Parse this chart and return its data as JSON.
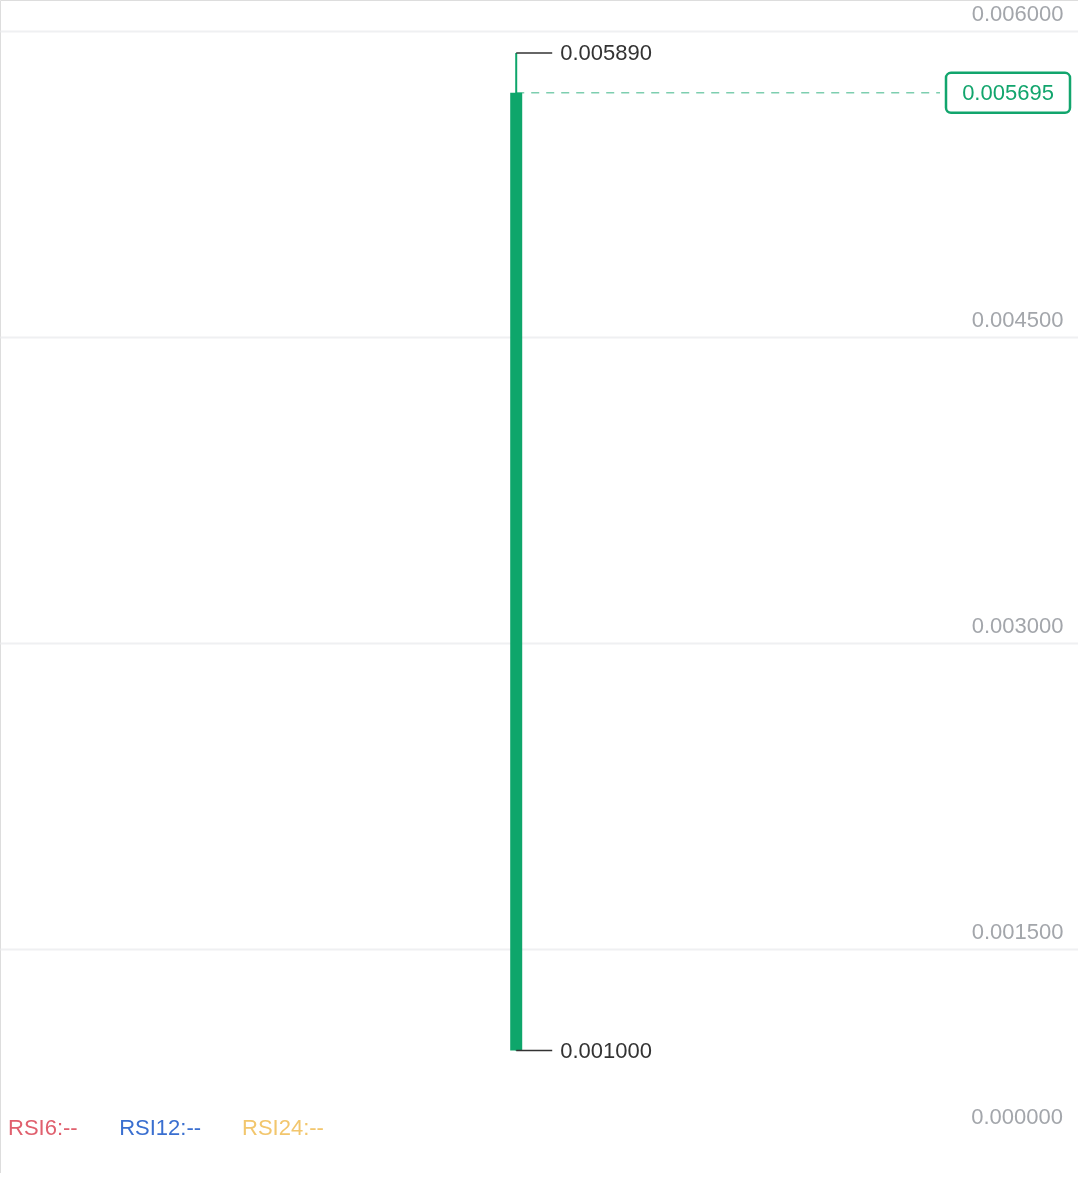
{
  "chart_data": [
    {
      "type": "candlestick",
      "categories": [
        null
      ],
      "ohlc": [
        [
          0.001,
          0.00589,
          0.001,
          0.005695
        ]
      ],
      "colors": [
        "#0ea66b"
      ],
      "ylim": [
        0.0004,
        0.00615
      ],
      "yticks": [
        {
          "value": 0.0015,
          "label": "0.001500"
        },
        {
          "value": 0.003,
          "label": "0.003000"
        },
        {
          "value": 0.0045,
          "label": "0.004500"
        },
        {
          "value": 0.006,
          "label": "0.006000"
        }
      ],
      "grid": "y",
      "tick_labels": "y",
      "annotations": [
        "0.005890",
        "0.001000"
      ],
      "ref_lines": [
        {
          "axis": "y",
          "value": 0.005695,
          "label": "0.005695",
          "color": "#12a56d",
          "line_style": "dashed"
        }
      ]
    },
    {
      "type": "other",
      "annotations": [
        "RSI6:--",
        "RSI12:--",
        "RSI24:--",
        "0.000000"
      ],
      "colors": [
        "#e0606e",
        "#3a6fd0",
        "#f2c66d",
        "#a3a6ab"
      ]
    }
  ]
}
